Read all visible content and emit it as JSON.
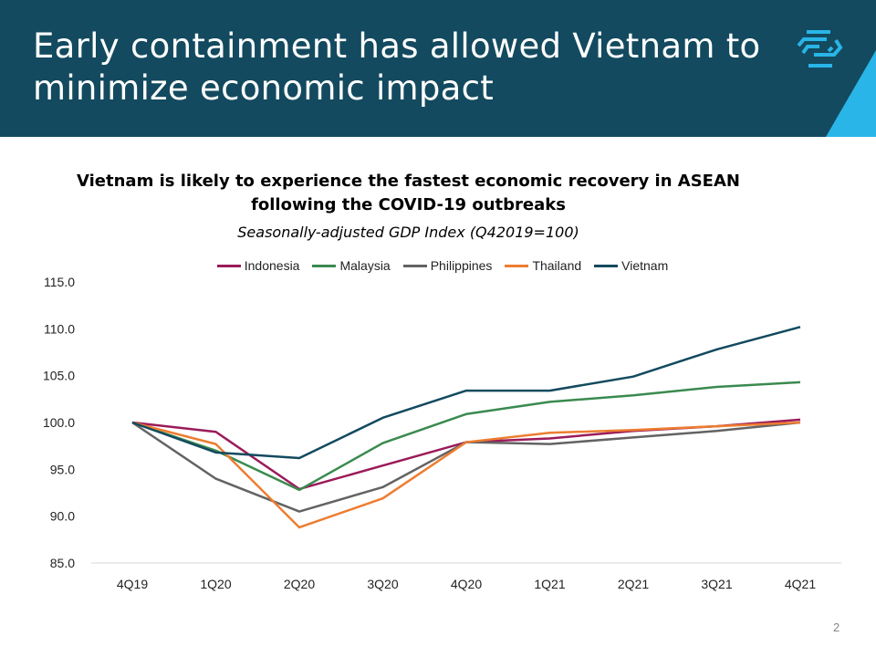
{
  "header": {
    "title": "Early containment has allowed Vietnam to minimize economic impact",
    "logo": "hexagon-stripes-logo",
    "colors": {
      "background": "#134a5f",
      "accent": "#29b5e8"
    }
  },
  "page_number": "2",
  "chart_data": {
    "type": "line",
    "title": "Vietnam is likely to experience the fastest economic recovery in ASEAN following the COVID-19 outbreaks",
    "subtitle": "Seasonally-adjusted  GDP Index (Q42019=100)",
    "xlabel": "",
    "ylabel": "",
    "categories": [
      "4Q19",
      "1Q20",
      "2Q20",
      "3Q20",
      "4Q20",
      "1Q21",
      "2Q21",
      "3Q21",
      "4Q21"
    ],
    "ylim": [
      85,
      115
    ],
    "yticks": [
      "115.0",
      "110.0",
      "105.0",
      "100.0",
      "95.0",
      "90.0",
      "85.0"
    ],
    "grid": false,
    "legend": "top",
    "series": [
      {
        "name": "Indonesia",
        "color": "#9b1b5a",
        "values": [
          100,
          99.0,
          92.9,
          95.4,
          97.9,
          98.3,
          99.1,
          99.6,
          100.3
        ]
      },
      {
        "name": "Malaysia",
        "color": "#3a8a4f",
        "values": [
          100,
          97.0,
          92.8,
          97.8,
          100.9,
          102.2,
          102.9,
          103.8,
          104.3
        ]
      },
      {
        "name": "Philippines",
        "color": "#636363",
        "values": [
          100,
          94.0,
          90.5,
          93.1,
          97.9,
          97.7,
          98.4,
          99.1,
          100.0
        ]
      },
      {
        "name": "Thailand",
        "color": "#ed7d31",
        "values": [
          100,
          97.7,
          88.8,
          91.9,
          97.9,
          98.9,
          99.2,
          99.6,
          100.0
        ]
      },
      {
        "name": "Vietnam",
        "color": "#134a5f",
        "values": [
          100,
          96.8,
          96.2,
          100.5,
          103.4,
          103.4,
          104.9,
          107.8,
          110.2
        ]
      }
    ]
  }
}
